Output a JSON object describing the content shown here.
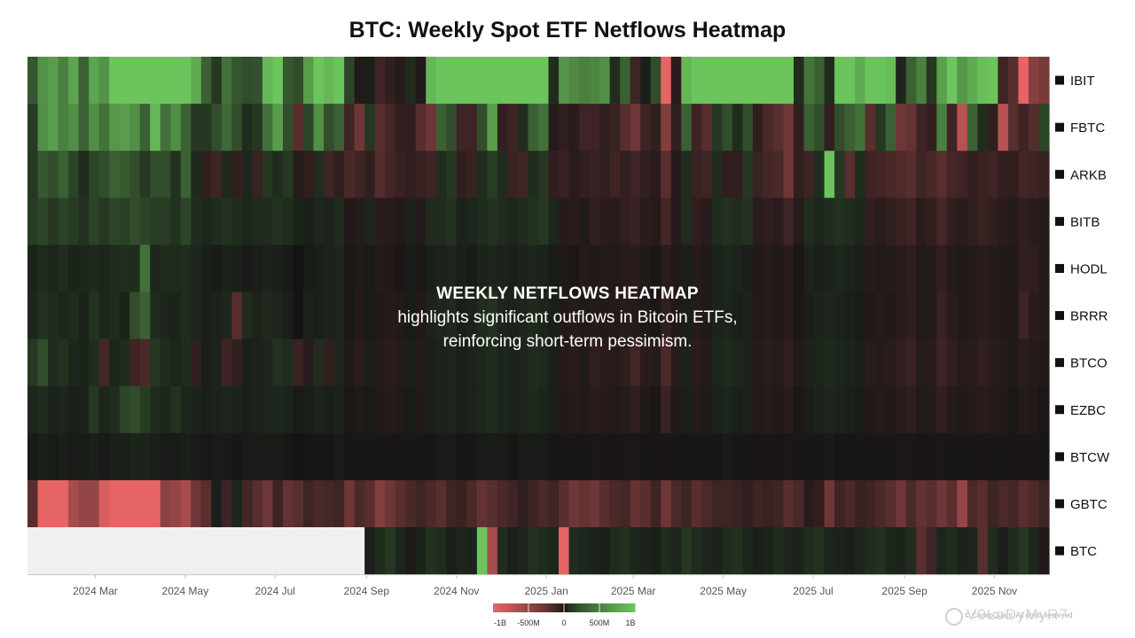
{
  "title": "BTC: Weekly Spot ETF Netflows Heatmap",
  "overlay": {
    "heading": "WEEKLY NETFLOWS HEATMAP",
    "line1": "highlights significant outflows in Bitcoin ETFs,",
    "line2": "reinforcing short-term pessimism."
  },
  "watermark": {
    "source": "© CryptoQuant. All rights reserved",
    "text": "V0LoDyMyR7"
  },
  "chart_data": {
    "type": "heatmap",
    "title": "BTC: Weekly Spot ETF Netflows Heatmap",
    "rows": [
      "IBIT",
      "FBTC",
      "ARKB",
      "BITB",
      "HODL",
      "BRRR",
      "BTCO",
      "EZBC",
      "BTCW",
      "GBTC",
      "BTC"
    ],
    "x_ticks": [
      "2024 Mar",
      "2024 May",
      "2024 Jul",
      "2024 Sep",
      "2024 Nov",
      "2025 Jan",
      "2025 Mar",
      "2025 May",
      "2025 Jul",
      "2025 Sep",
      "2025 Nov"
    ],
    "x_range": [
      "2024-01-15",
      "2025-12-08"
    ],
    "weeks": 100,
    "color_scale": {
      "min": -1000000000,
      "max": 1000000000,
      "low": "#e66464",
      "mid": "#141414",
      "high": "#6cc45c",
      "tick_labels": [
        "-1B",
        "-500M",
        "0",
        "500M",
        "1B"
      ]
    },
    "no_data_color": "#f0f0f2",
    "values_millions": {
      "IBIT": [
        250,
        620,
        700,
        500,
        750,
        300,
        750,
        620,
        1000,
        1100,
        1300,
        1000,
        1100,
        1200,
        1250,
        1300,
        800,
        300,
        100,
        400,
        250,
        200,
        220,
        900,
        1000,
        260,
        200,
        700,
        1000,
        900,
        1000,
        160,
        -20,
        20,
        -100,
        -60,
        -30,
        60,
        -20,
        900,
        1000,
        1000,
        1100,
        1000,
        1100,
        1200,
        1050,
        1000,
        1300,
        1250,
        1300,
        60,
        640,
        560,
        500,
        540,
        600,
        60,
        300,
        -100,
        20,
        200,
        -1000,
        -40,
        900,
        1000,
        1200,
        1000,
        1250,
        1300,
        1400,
        1300,
        1200,
        1450,
        1300,
        60,
        420,
        300,
        60,
        1200,
        1100,
        800,
        1300,
        1000,
        950,
        40,
        300,
        500,
        100,
        720,
        1000,
        660,
        800,
        950,
        1200,
        -100,
        -200,
        -1000,
        -420,
        -350
      ],
      "FBTC": [
        120,
        600,
        700,
        500,
        600,
        300,
        600,
        400,
        650,
        700,
        600,
        300,
        900,
        400,
        600,
        300,
        100,
        100,
        200,
        350,
        200,
        60,
        100,
        400,
        700,
        200,
        -200,
        160,
        600,
        200,
        300,
        -100,
        -300,
        100,
        -200,
        -120,
        -60,
        -60,
        -200,
        -300,
        300,
        200,
        -100,
        -100,
        200,
        700,
        -60,
        -100,
        60,
        300,
        400,
        -30,
        -60,
        -40,
        -100,
        -100,
        -60,
        -80,
        -200,
        -300,
        -100,
        -60,
        -400,
        -60,
        300,
        -100,
        -200,
        100,
        200,
        60,
        200,
        -60,
        -150,
        -200,
        -300,
        -60,
        300,
        200,
        -60,
        200,
        300,
        400,
        -200,
        100,
        300,
        -300,
        -260,
        -100,
        -60,
        500,
        -100,
        -700,
        300,
        60,
        -60,
        -700,
        -200,
        -100,
        -180,
        160
      ],
      "ARKB": [
        100,
        250,
        200,
        300,
        150,
        60,
        160,
        200,
        300,
        260,
        200,
        100,
        200,
        200,
        80,
        300,
        50,
        -60,
        -100,
        50,
        -60,
        40,
        -80,
        100,
        60,
        100,
        -30,
        -60,
        60,
        -100,
        -60,
        -150,
        -100,
        -60,
        -180,
        -120,
        -80,
        -60,
        -80,
        -100,
        60,
        100,
        -60,
        -80,
        60,
        120,
        60,
        -80,
        -100,
        60,
        100,
        -60,
        -80,
        -40,
        -60,
        -80,
        -60,
        -100,
        -60,
        -100,
        -60,
        -40,
        -200,
        -30,
        60,
        -80,
        -100,
        60,
        -60,
        -60,
        100,
        -80,
        -120,
        -140,
        -300,
        -60,
        -100,
        60,
        1200,
        100,
        -200,
        60,
        -100,
        -120,
        -140,
        -160,
        -200,
        -100,
        -140,
        -200,
        -120,
        -100,
        -60,
        -80,
        -100,
        -60,
        -60,
        -120,
        -100,
        -80
      ],
      "BITB": [
        120,
        160,
        100,
        150,
        120,
        80,
        150,
        100,
        160,
        140,
        200,
        160,
        120,
        120,
        80,
        160,
        60,
        40,
        60,
        80,
        60,
        40,
        50,
        60,
        80,
        60,
        30,
        20,
        40,
        30,
        60,
        -20,
        -30,
        40,
        -40,
        -30,
        -20,
        30,
        -30,
        60,
        60,
        80,
        30,
        40,
        60,
        80,
        60,
        40,
        60,
        80,
        100,
        40,
        -30,
        -40,
        -20,
        -60,
        -40,
        -30,
        -60,
        -80,
        -40,
        -30,
        -120,
        -30,
        60,
        -60,
        -40,
        60,
        80,
        60,
        80,
        -40,
        -60,
        -40,
        -100,
        -30,
        60,
        40,
        60,
        80,
        60,
        40,
        -60,
        -40,
        -60,
        -80,
        -100,
        -40,
        -60,
        -120,
        -60,
        -40,
        -60,
        -80,
        -60,
        -40,
        -30,
        -60,
        -40,
        -30
      ],
      "HODL": [
        30,
        60,
        40,
        60,
        30,
        40,
        50,
        40,
        60,
        70,
        60,
        400,
        40,
        60,
        50,
        60,
        40,
        20,
        10,
        30,
        20,
        10,
        20,
        30,
        20,
        10,
        0,
        10,
        20,
        30,
        40,
        -10,
        -20,
        10,
        -30,
        -20,
        -10,
        10,
        -10,
        20,
        30,
        40,
        20,
        10,
        30,
        40,
        30,
        20,
        30,
        40,
        30,
        10,
        -20,
        -10,
        -30,
        -20,
        -30,
        -20,
        -30,
        -40,
        -20,
        -10,
        -40,
        -20,
        20,
        -30,
        -20,
        30,
        40,
        30,
        20,
        -20,
        -30,
        -20,
        -40,
        -10,
        30,
        20,
        30,
        40,
        30,
        20,
        -30,
        -20,
        -30,
        -40,
        -50,
        -20,
        -30,
        -60,
        -30,
        -20,
        -30,
        -40,
        -30,
        -20,
        -20,
        -60,
        -50,
        -30
      ],
      "BRRR": [
        40,
        80,
        60,
        40,
        60,
        30,
        80,
        40,
        60,
        30,
        200,
        300,
        60,
        40,
        30,
        60,
        40,
        20,
        30,
        40,
        -200,
        60,
        30,
        50,
        40,
        20,
        0,
        30,
        20,
        30,
        40,
        -10,
        -30,
        10,
        -20,
        -30,
        -20,
        10,
        -20,
        30,
        40,
        50,
        20,
        30,
        60,
        80,
        40,
        30,
        40,
        50,
        40,
        20,
        -20,
        -30,
        -20,
        -30,
        -20,
        -30,
        -40,
        -30,
        -20,
        -10,
        -60,
        -20,
        20,
        -30,
        -20,
        30,
        40,
        20,
        30,
        -20,
        -30,
        -20,
        -40,
        -10,
        20,
        30,
        40,
        30,
        20,
        10,
        -20,
        -30,
        -20,
        -40,
        -60,
        -20,
        -30,
        -80,
        -40,
        -20,
        -30,
        -40,
        -30,
        -20,
        -20,
        -100,
        -40,
        -30
      ],
      "BTCO": [
        100,
        200,
        60,
        80,
        40,
        30,
        60,
        -120,
        40,
        60,
        -100,
        -150,
        100,
        60,
        40,
        60,
        -60,
        20,
        30,
        -100,
        -60,
        20,
        30,
        40,
        80,
        60,
        -80,
        -40,
        60,
        -60,
        40,
        -20,
        -40,
        20,
        -30,
        -40,
        -30,
        20,
        -30,
        20,
        30,
        40,
        20,
        30,
        40,
        60,
        40,
        30,
        40,
        60,
        50,
        20,
        -30,
        -40,
        -20,
        -60,
        -40,
        -30,
        -50,
        -120,
        -40,
        -30,
        -150,
        -40,
        30,
        -40,
        -30,
        40,
        50,
        40,
        30,
        -30,
        -40,
        -30,
        -60,
        -20,
        30,
        40,
        50,
        40,
        30,
        20,
        -40,
        -30,
        -40,
        -60,
        -80,
        -30,
        -40,
        -100,
        -60,
        -30,
        -40,
        -60,
        -40,
        -30,
        -20,
        -40,
        -30,
        -20
      ],
      "EZBC": [
        40,
        60,
        30,
        40,
        20,
        30,
        100,
        40,
        60,
        160,
        200,
        120,
        60,
        40,
        80,
        40,
        30,
        20,
        30,
        40,
        30,
        20,
        30,
        40,
        40,
        30,
        10,
        20,
        30,
        20,
        30,
        -10,
        -20,
        10,
        -20,
        -30,
        -20,
        10,
        -20,
        20,
        30,
        40,
        20,
        30,
        40,
        60,
        40,
        30,
        40,
        50,
        40,
        20,
        -20,
        -30,
        -20,
        -40,
        -30,
        -20,
        -30,
        -60,
        -20,
        -10,
        -80,
        -20,
        20,
        -30,
        -20,
        30,
        40,
        20,
        30,
        -20,
        -30,
        -20,
        -40,
        -10,
        20,
        30,
        40,
        30,
        20,
        10,
        -20,
        -30,
        -20,
        -40,
        -50,
        -20,
        -30,
        -60,
        -30,
        -20,
        -30,
        -40,
        -30,
        -20,
        -10,
        -30,
        -20,
        -10
      ],
      "BTCW": [
        10,
        20,
        10,
        20,
        10,
        10,
        20,
        10,
        20,
        20,
        30,
        30,
        20,
        10,
        10,
        20,
        10,
        5,
        10,
        10,
        5,
        10,
        10,
        10,
        10,
        5,
        0,
        5,
        5,
        5,
        10,
        -5,
        -5,
        5,
        -5,
        -5,
        -5,
        5,
        -5,
        5,
        10,
        10,
        5,
        5,
        10,
        10,
        10,
        5,
        10,
        10,
        10,
        5,
        -5,
        -5,
        -5,
        -10,
        -5,
        -5,
        -10,
        -10,
        -5,
        -5,
        -10,
        -5,
        5,
        -5,
        -5,
        5,
        10,
        5,
        5,
        -5,
        -10,
        -5,
        -10,
        -5,
        5,
        5,
        10,
        5,
        5,
        5,
        -5,
        -5,
        -5,
        -10,
        -10,
        -5,
        -5,
        -10,
        -5,
        -5,
        -5,
        -10,
        -5,
        -5,
        -5,
        -10,
        -5,
        -5
      ],
      "GBTC": [
        -200,
        -1000,
        -1000,
        -1000,
        -600,
        -500,
        -500,
        -900,
        -1000,
        -1000,
        -1000,
        -1000,
        -1000,
        -450,
        -500,
        -600,
        -300,
        -200,
        20,
        -100,
        40,
        -120,
        -200,
        -300,
        -100,
        -250,
        -200,
        -100,
        -150,
        -120,
        -100,
        -300,
        -150,
        -200,
        -400,
        -300,
        -200,
        -150,
        -100,
        -150,
        -200,
        -100,
        -80,
        -150,
        -250,
        -200,
        -150,
        -100,
        -60,
        -100,
        -150,
        -100,
        -200,
        -300,
        -250,
        -300,
        -200,
        -150,
        -120,
        -250,
        -200,
        -100,
        -300,
        -150,
        -100,
        -200,
        -150,
        -100,
        -100,
        -80,
        -60,
        -100,
        -80,
        -100,
        -200,
        -150,
        -40,
        -60,
        -300,
        -100,
        -150,
        -80,
        -100,
        -150,
        -200,
        -300,
        -150,
        -250,
        -200,
        -300,
        -200,
        -500,
        -150,
        -200,
        -100,
        -150,
        -120,
        -200,
        -160,
        -100
      ],
      "BTC": [
        null,
        null,
        null,
        null,
        null,
        null,
        null,
        null,
        null,
        null,
        null,
        null,
        null,
        null,
        null,
        null,
        null,
        null,
        null,
        null,
        null,
        null,
        null,
        null,
        null,
        null,
        null,
        null,
        null,
        null,
        null,
        null,
        null,
        null,
        null,
        null,
        null,
        null,
        null,
        null,
        null,
        null,
        null,
        null,
        null,
        null,
        null,
        null,
        null,
        null,
        null,
        null,
        null,
        null,
        null,
        null,
        null,
        null,
        null,
        null,
        null,
        null,
        null,
        null,
        null,
        null,
        null,
        null,
        null,
        null,
        null,
        null,
        null,
        null,
        null,
        null,
        null,
        null,
        null,
        null,
        null,
        null,
        null,
        null,
        null,
        null,
        null,
        null,
        null,
        null,
        null,
        null,
        null,
        null,
        null,
        null,
        null,
        null,
        null,
        null
      ]
    }
  }
}
